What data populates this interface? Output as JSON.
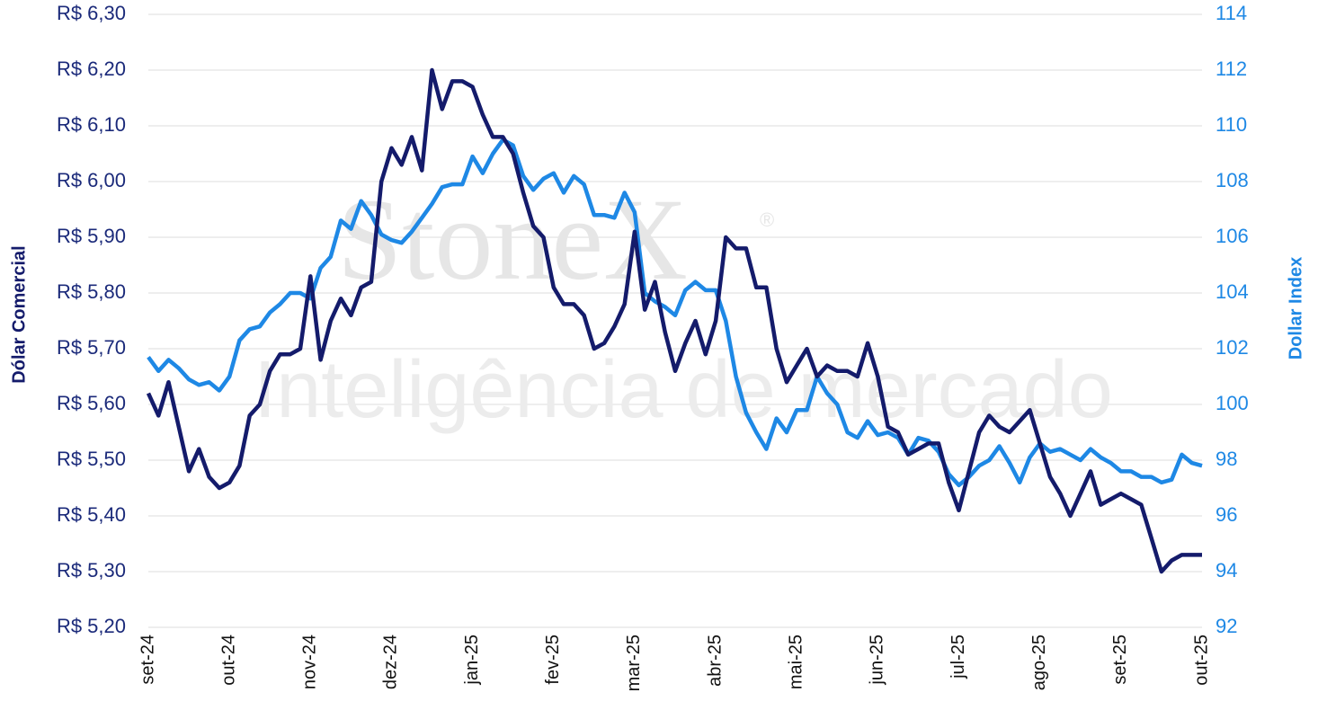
{
  "chart_data": {
    "type": "line",
    "watermark": "StoneX",
    "watermark_mark": "®",
    "watermark_subtitle": "Inteligência de mercado",
    "ylabel": "Dólar Comercial",
    "y2label": "Dollar Index",
    "categories": [
      "set-24",
      null,
      null,
      null,
      null,
      null,
      null,
      null,
      "out-24",
      null,
      null,
      null,
      null,
      null,
      null,
      null,
      "nov-24",
      null,
      null,
      null,
      null,
      null,
      null,
      null,
      "dez-24",
      null,
      null,
      null,
      null,
      null,
      null,
      null,
      "jan-25",
      null,
      null,
      null,
      null,
      null,
      null,
      null,
      "fev-25",
      null,
      null,
      null,
      null,
      null,
      null,
      null,
      "mar-25",
      null,
      null,
      null,
      null,
      null,
      null,
      null,
      "abr-25",
      null,
      null,
      null,
      null,
      null,
      null,
      null,
      "mai-25",
      null,
      null,
      null,
      null,
      null,
      null,
      null,
      "jun-25",
      null,
      null,
      null,
      null,
      null,
      null,
      null,
      "jul-25",
      null,
      null,
      null,
      null,
      null,
      null,
      null,
      "ago-25",
      null,
      null,
      null,
      null,
      null,
      null,
      null,
      "set-25",
      null,
      null,
      null,
      null,
      null,
      null,
      null,
      "out-25"
    ],
    "series": [
      {
        "name": "Dólar Comercial",
        "color": "#141b6b",
        "axis": "y",
        "values": [
          5.62,
          5.58,
          5.64,
          5.56,
          5.48,
          5.52,
          5.47,
          5.45,
          5.46,
          5.49,
          5.58,
          5.6,
          5.66,
          5.69,
          5.69,
          5.7,
          5.83,
          5.68,
          5.75,
          5.79,
          5.76,
          5.81,
          5.82,
          6.0,
          6.06,
          6.03,
          6.08,
          6.02,
          6.2,
          6.13,
          6.18,
          6.18,
          6.17,
          6.12,
          6.08,
          6.08,
          6.05,
          5.98,
          5.92,
          5.9,
          5.81,
          5.78,
          5.78,
          5.76,
          5.7,
          5.71,
          5.74,
          5.78,
          5.91,
          5.77,
          5.82,
          5.73,
          5.66,
          5.71,
          5.75,
          5.69,
          5.75,
          5.9,
          5.88,
          5.88,
          5.81,
          5.81,
          5.7,
          5.64,
          5.67,
          5.7,
          5.65,
          5.67,
          5.66,
          5.66,
          5.65,
          5.71,
          5.65,
          5.56,
          5.55,
          5.51,
          5.52,
          5.53,
          5.53,
          5.46,
          5.41,
          5.48,
          5.55,
          5.58,
          5.56,
          5.55,
          5.57,
          5.59,
          5.53,
          5.47,
          5.44,
          5.4,
          5.44,
          5.48,
          5.42,
          5.43,
          5.44,
          5.43,
          5.42,
          5.36,
          5.3,
          5.32,
          5.33,
          5.33,
          5.33
        ]
      },
      {
        "name": "Dollar Index",
        "color": "#1e88e5",
        "axis": "y2",
        "values": [
          101.7,
          101.2,
          101.6,
          101.3,
          100.9,
          100.7,
          100.8,
          100.5,
          101.0,
          102.3,
          102.7,
          102.8,
          103.3,
          103.6,
          104.0,
          104.0,
          103.8,
          104.9,
          105.3,
          106.6,
          106.3,
          107.3,
          106.8,
          106.1,
          105.9,
          105.8,
          106.2,
          106.7,
          107.2,
          107.8,
          107.9,
          107.9,
          108.9,
          108.3,
          109.0,
          109.5,
          109.3,
          108.2,
          107.7,
          108.1,
          108.3,
          107.6,
          108.2,
          107.9,
          106.8,
          106.8,
          106.7,
          107.6,
          106.9,
          104.0,
          103.7,
          103.5,
          103.2,
          104.1,
          104.4,
          104.1,
          104.1,
          103.0,
          101.0,
          99.7,
          99.0,
          98.4,
          99.5,
          99.0,
          99.8,
          99.8,
          101.0,
          100.4,
          100.0,
          99.0,
          98.8,
          99.4,
          98.9,
          99.0,
          98.8,
          98.2,
          98.8,
          98.7,
          98.3,
          97.5,
          97.1,
          97.4,
          97.8,
          98.0,
          98.5,
          97.9,
          97.2,
          98.1,
          98.6,
          98.3,
          98.4,
          98.2,
          98.0,
          98.4,
          98.1,
          97.9,
          97.6,
          97.6,
          97.4,
          97.4,
          97.2,
          97.3,
          98.2,
          97.9,
          97.8
        ]
      }
    ],
    "ylim": [
      5.2,
      6.3
    ],
    "yticks": [
      {
        "value": 5.2,
        "label": "R$ 5,20"
      },
      {
        "value": 5.3,
        "label": "R$ 5,30"
      },
      {
        "value": 5.4,
        "label": "R$ 5,40"
      },
      {
        "value": 5.5,
        "label": "R$ 5,50"
      },
      {
        "value": 5.6,
        "label": "R$ 5,60"
      },
      {
        "value": 5.7,
        "label": "R$ 5,70"
      },
      {
        "value": 5.8,
        "label": "R$ 5,80"
      },
      {
        "value": 5.9,
        "label": "R$ 5,90"
      },
      {
        "value": 6.0,
        "label": "R$ 6,00"
      },
      {
        "value": 6.1,
        "label": "R$ 6,10"
      },
      {
        "value": 6.2,
        "label": "R$ 6,20"
      },
      {
        "value": 6.3,
        "label": "R$ 6,30"
      }
    ],
    "y2lim": [
      92,
      114
    ],
    "y2ticks": [
      92,
      94,
      96,
      98,
      100,
      102,
      104,
      106,
      108,
      110,
      112,
      114
    ],
    "grid": true
  }
}
